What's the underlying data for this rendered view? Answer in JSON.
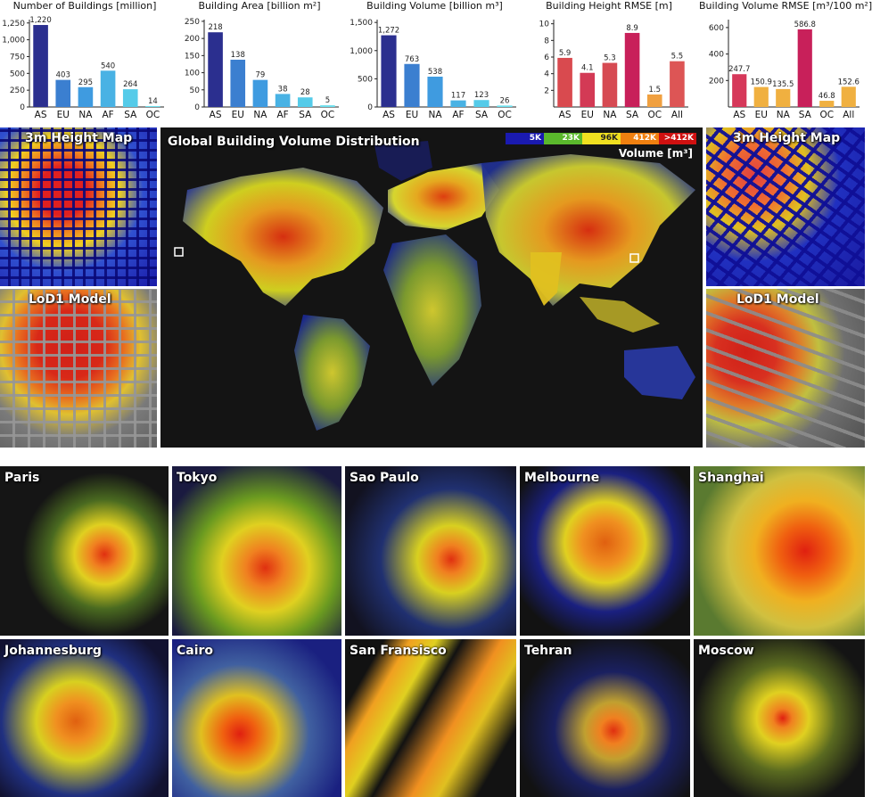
{
  "chart_data": [
    {
      "type": "bar",
      "title": "Number of Buildings [million]",
      "categories": [
        "AS",
        "EU",
        "NA",
        "AF",
        "SA",
        "OC"
      ],
      "values": [
        1220,
        403,
        295,
        540,
        264,
        14
      ],
      "value_labels": [
        "1,220",
        "403",
        "295",
        "540",
        "264",
        "14"
      ],
      "ylim": [
        0,
        1300
      ],
      "yticks": [
        0,
        250,
        500,
        750,
        1000,
        1250
      ],
      "ytick_labels": [
        "0",
        "250",
        "500",
        "750",
        "1,000",
        "1,250"
      ],
      "colors": [
        "#2b2f8f",
        "#3b7fd0",
        "#3f9be0",
        "#49b2e4",
        "#55cbe9",
        "#6de0ee"
      ]
    },
    {
      "type": "bar",
      "title": "Building Area [billion m²]",
      "categories": [
        "AS",
        "EU",
        "NA",
        "AF",
        "SA",
        "OC"
      ],
      "values": [
        218,
        138,
        79,
        38,
        28,
        5
      ],
      "value_labels": [
        "218",
        "138",
        "79",
        "38",
        "28",
        "5"
      ],
      "ylim": [
        0,
        255
      ],
      "yticks": [
        0,
        50,
        100,
        150,
        200,
        250
      ],
      "ytick_labels": [
        "0",
        "50",
        "100",
        "150",
        "200",
        "250"
      ],
      "colors": [
        "#2b2f8f",
        "#3b7fd0",
        "#3f9be0",
        "#49b2e4",
        "#55cbe9",
        "#6de0ee"
      ]
    },
    {
      "type": "bar",
      "title": "Building Volume [billion m³]",
      "categories": [
        "AS",
        "EU",
        "NA",
        "AF",
        "SA",
        "OC"
      ],
      "values": [
        1272,
        763,
        538,
        117,
        123,
        26
      ],
      "value_labels": [
        "1,272",
        "763",
        "538",
        "117",
        "123",
        "26"
      ],
      "ylim": [
        0,
        1550
      ],
      "yticks": [
        0,
        500,
        1000,
        1500
      ],
      "ytick_labels": [
        "0",
        "500",
        "1,000",
        "1,500"
      ],
      "colors": [
        "#2b2f8f",
        "#3b7fd0",
        "#3f9be0",
        "#49b2e4",
        "#55cbe9",
        "#6de0ee"
      ]
    },
    {
      "type": "bar",
      "title": "Building Height RMSE [m]",
      "categories": [
        "AS",
        "EU",
        "NA",
        "SA",
        "OC",
        "All"
      ],
      "values": [
        5.9,
        4.1,
        5.3,
        8.9,
        1.5,
        5.5
      ],
      "value_labels": [
        "5.9",
        "4.1",
        "5.3",
        "8.9",
        "1.5",
        "5.5"
      ],
      "ylim": [
        0,
        10.5
      ],
      "yticks": [
        2,
        4,
        6,
        8,
        10
      ],
      "ytick_labels": [
        "2",
        "4",
        "6",
        "8",
        "10"
      ],
      "colors": [
        "#d94a4f",
        "#d33a55",
        "#d64a52",
        "#c8205a",
        "#f0a040",
        "#dd5555"
      ]
    },
    {
      "type": "bar",
      "title": "Building Volume RMSE [m³/100 m²]",
      "categories": [
        "AS",
        "EU",
        "NA",
        "SA",
        "OC",
        "All"
      ],
      "values": [
        247.7,
        150.9,
        135.5,
        586.8,
        46.8,
        152.6
      ],
      "value_labels": [
        "247.7",
        "150.9",
        "135.5",
        "586.8",
        "46.8",
        "152.6"
      ],
      "ylim": [
        0,
        660
      ],
      "yticks": [
        200,
        400,
        600
      ],
      "ytick_labels": [
        "200",
        "400",
        "600"
      ],
      "colors": [
        "#d6385a",
        "#f0b040",
        "#f0b040",
        "#c8205a",
        "#f0b040",
        "#f0b040"
      ]
    }
  ],
  "map": {
    "title": "Global Building Volume Distribution",
    "legend": {
      "items": [
        {
          "label": "5K",
          "color": "#1a1ab0"
        },
        {
          "label": "23K",
          "color": "#5ab82c"
        },
        {
          "label": "96K",
          "color": "#f0e020"
        },
        {
          "label": "412K",
          "color": "#f08010"
        },
        {
          "label": ">412K",
          "color": "#d01010"
        }
      ],
      "unit": "Volume [m³]"
    }
  },
  "insets": {
    "left_top": "3m Height Map",
    "left_bottom": "LoD1 Model",
    "right_top": "3m Height Map",
    "right_bottom": "LoD1 Model"
  },
  "cities": [
    "Paris",
    "Tokyo",
    "Sao Paulo",
    "Melbourne",
    "Shanghai",
    "Johannesburg",
    "Cairo",
    "San Fransisco",
    "Tehran",
    "Moscow"
  ]
}
